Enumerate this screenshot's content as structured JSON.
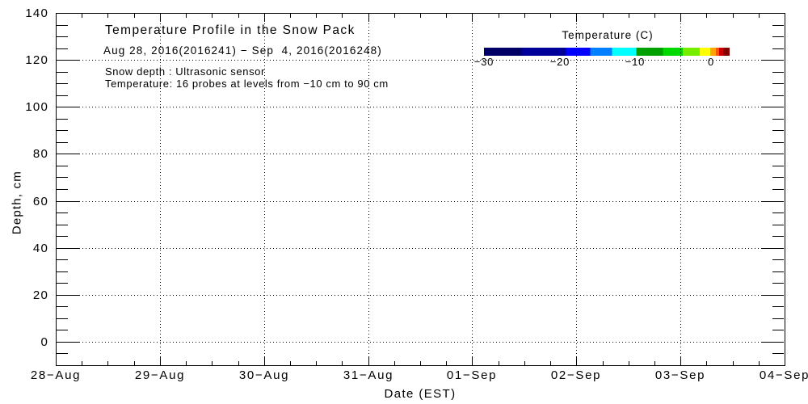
{
  "chart_data": {
    "type": "heatmap",
    "title": "Temperature Profile in the Snow Pack",
    "subtitle": "Aug 28, 2016(2016241) − Sep  4, 2016(2016248)",
    "annotations": [
      "Snow depth : Ultrasonic sensor",
      "Temperature: 16 probes at levels from −10 cm to 90 cm"
    ],
    "xlabel": "Date (EST)",
    "ylabel": "Depth, cm",
    "x_tick_labels": [
      "28−Aug",
      "29−Aug",
      "30−Aug",
      "31−Aug",
      "01−Sep",
      "02−Sep",
      "03−Sep",
      "04−Sep"
    ],
    "x_minor_ticks_per_day": 4,
    "y_tick_values": [
      0,
      20,
      40,
      60,
      80,
      100,
      120,
      140
    ],
    "y_minor_step": 5,
    "ylim": [
      -10,
      140
    ],
    "grid": {
      "style": "dotted",
      "vertical": "one line per day",
      "horizontal": "every 20 cm"
    },
    "values": [],
    "colorbar": {
      "title": "Temperature (C)",
      "tick_labels": [
        "−30",
        "−20",
        "−10",
        "0"
      ],
      "tick_values": [
        -30,
        -20,
        -10,
        0
      ],
      "range": [
        -30,
        2.5
      ],
      "segments": [
        {
          "color": "#000066",
          "to": 0.154
        },
        {
          "color": "#000099",
          "to": 0.334
        },
        {
          "color": "#0000FF",
          "to": 0.433
        },
        {
          "color": "#0080FF",
          "to": 0.521
        },
        {
          "color": "#00FFFF",
          "to": 0.62
        },
        {
          "color": "#00A000",
          "to": 0.728
        },
        {
          "color": "#00D800",
          "to": 0.81
        },
        {
          "color": "#77EE00",
          "to": 0.879
        },
        {
          "color": "#FFFF00",
          "to": 0.921
        },
        {
          "color": "#FFA500",
          "to": 0.944
        },
        {
          "color": "#FF5500",
          "to": 0.957
        },
        {
          "color": "#CC0000",
          "to": 0.974
        },
        {
          "color": "#880000",
          "to": 1.0
        }
      ]
    }
  },
  "colors": {
    "background": "#ffffff",
    "axis": "#000000",
    "text": "#000000"
  }
}
